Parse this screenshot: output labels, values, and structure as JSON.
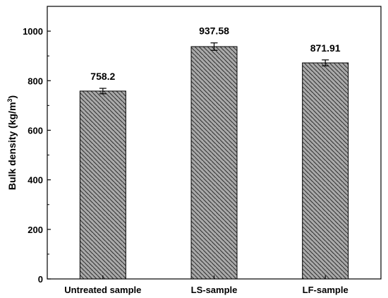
{
  "chart_data": {
    "type": "bar",
    "categories": [
      "Untreated sample",
      "LS-sample",
      "LF-sample"
    ],
    "values": [
      758.2,
      937.58,
      871.91
    ],
    "errors": [
      11,
      15,
      12
    ],
    "data_labels": [
      "758.2",
      "937.58",
      "871.91"
    ],
    "title": "",
    "xlabel": "",
    "ylabel_main": "Bulk density (kg/m",
    "ylabel_sup": "3",
    "ylabel_close": ")",
    "ylim": [
      0,
      1100
    ],
    "yticks": [
      0,
      200,
      400,
      600,
      800,
      1000
    ],
    "grid": false,
    "bar_color": "#a9a9a9",
    "hatch_color": "#333333"
  }
}
